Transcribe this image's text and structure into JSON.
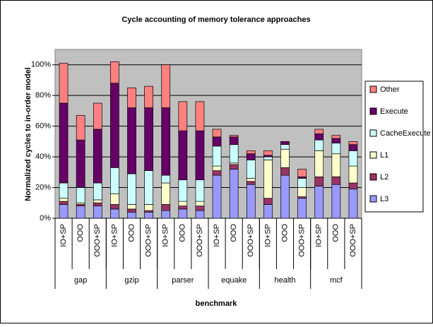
{
  "chart_data": {
    "type": "stacked-bar",
    "title": "Cycle accounting of memory tolerance approaches",
    "xlabel": "benchmark",
    "ylabel": "Normalized cycles to in-order model",
    "categories": [
      "IO+SP",
      "OOO",
      "OOO+SP",
      "IO+SP",
      "OOO",
      "OOO+SP",
      "IO+SP",
      "OOO",
      "OOO+SP",
      "IO+SP",
      "OOO",
      "OOO+SP",
      "IO+SP",
      "OOO",
      "OOO+SP",
      "IO+SP",
      "OOO",
      "OOO+SP"
    ],
    "groups": [
      "gap",
      "gzip",
      "parser",
      "equake",
      "health",
      "mcf"
    ],
    "series": [
      {
        "name": "L3",
        "color": "#9999ff",
        "values": [
          9,
          8,
          8,
          6,
          4,
          4,
          5,
          6,
          5,
          28,
          32,
          22,
          9,
          28,
          13,
          21,
          22,
          19
        ]
      },
      {
        "name": "L2",
        "color": "#993366",
        "values": [
          2,
          1,
          2,
          3,
          2,
          1,
          4,
          2,
          3,
          3,
          3,
          2,
          4,
          5,
          1,
          6,
          5,
          4
        ]
      },
      {
        "name": "L1",
        "color": "#ffffcc",
        "values": [
          2,
          1,
          2,
          7,
          3,
          4,
          14,
          3,
          3,
          3,
          1,
          2,
          25,
          12,
          6,
          17,
          15,
          11
        ]
      },
      {
        "name": "CacheExecute",
        "color": "#ccffff",
        "values": [
          10,
          10,
          11,
          17,
          20,
          22,
          5,
          14,
          14,
          13,
          12,
          12,
          2,
          3,
          6,
          7,
          7,
          10
        ]
      },
      {
        "name": "Execute",
        "color": "#660066",
        "values": [
          52,
          31,
          35,
          55,
          43,
          41,
          44,
          32,
          32,
          6,
          5,
          4,
          1,
          2,
          1,
          4,
          3,
          4
        ]
      },
      {
        "name": "Other",
        "color": "#ff8080",
        "values": [
          26,
          16,
          17,
          14,
          13,
          14,
          28,
          19,
          19,
          5,
          1,
          2,
          3,
          0,
          5,
          3,
          2,
          2
        ]
      }
    ],
    "ylim": [
      0,
      110
    ],
    "yticks": [
      {
        "value": 0,
        "label": "0%"
      },
      {
        "value": 20,
        "label": "20%"
      },
      {
        "value": 40,
        "label": "40%"
      },
      {
        "value": 60,
        "label": "60%"
      },
      {
        "value": 80,
        "label": "80%"
      },
      {
        "value": 100,
        "label": "100%"
      }
    ],
    "grid": true,
    "legend": "right"
  }
}
